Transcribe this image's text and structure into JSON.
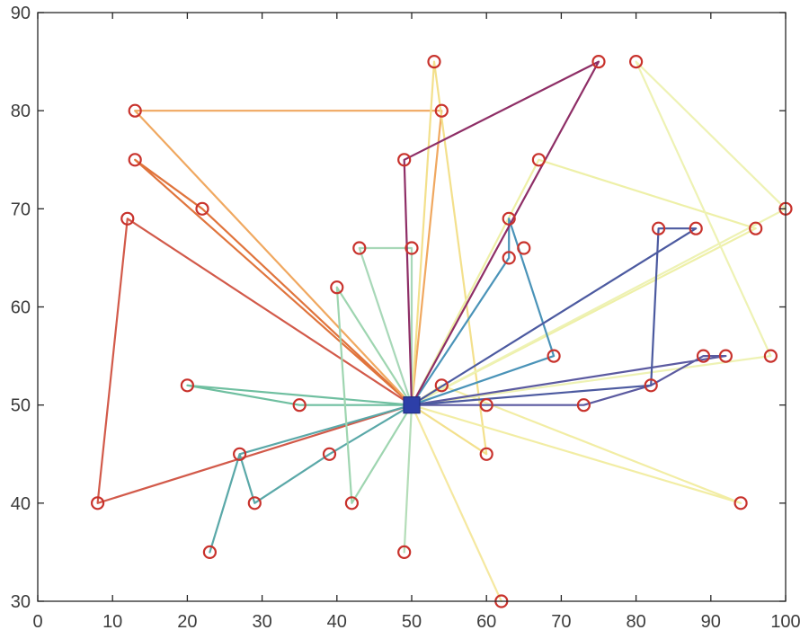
{
  "chart_data": {
    "type": "scatter",
    "xlim": [
      0,
      100
    ],
    "ylim": [
      30,
      90
    ],
    "x_ticks": [
      "0",
      "10",
      "20",
      "30",
      "40",
      "50",
      "60",
      "70",
      "80",
      "90",
      "100"
    ],
    "y_ticks": [
      "30",
      "40",
      "50",
      "60",
      "70",
      "80",
      "90"
    ],
    "grid": false,
    "depot": {
      "x": 50,
      "y": 50,
      "color": "#2d3fa8"
    },
    "customers": [
      [
        8,
        40
      ],
      [
        12,
        69
      ],
      [
        13,
        75
      ],
      [
        13,
        80
      ],
      [
        20,
        52
      ],
      [
        22,
        70
      ],
      [
        23,
        35
      ],
      [
        27,
        45
      ],
      [
        29,
        40
      ],
      [
        35,
        50
      ],
      [
        39,
        45
      ],
      [
        40,
        62
      ],
      [
        42,
        40
      ],
      [
        43,
        66
      ],
      [
        49,
        35
      ],
      [
        49,
        75
      ],
      [
        50,
        66
      ],
      [
        53,
        85
      ],
      [
        54,
        80
      ],
      [
        54,
        52
      ],
      [
        60,
        50
      ],
      [
        60,
        45
      ],
      [
        62,
        30
      ],
      [
        63,
        69
      ],
      [
        63,
        65
      ],
      [
        65,
        66
      ],
      [
        67,
        75
      ],
      [
        69,
        55
      ],
      [
        73,
        50
      ],
      [
        75,
        85
      ],
      [
        80,
        85
      ],
      [
        82,
        52
      ],
      [
        83,
        68
      ],
      [
        88,
        68
      ],
      [
        89,
        55
      ],
      [
        92,
        55
      ],
      [
        94,
        40
      ],
      [
        96,
        68
      ],
      [
        98,
        55
      ],
      [
        100,
        70
      ]
    ],
    "routes": [
      {
        "color": "#d25a4a",
        "points": [
          [
            50,
            50
          ],
          [
            8,
            40
          ],
          [
            12,
            69
          ],
          [
            50,
            50
          ]
        ]
      },
      {
        "color": "#e0743c",
        "points": [
          [
            50,
            50
          ],
          [
            13,
            75
          ],
          [
            22,
            70
          ],
          [
            50,
            50
          ]
        ]
      },
      {
        "color": "#f0a860",
        "points": [
          [
            50,
            50
          ],
          [
            13,
            80
          ],
          [
            54,
            80
          ],
          [
            50,
            50
          ]
        ]
      },
      {
        "color": "#f3e08c",
        "points": [
          [
            50,
            50
          ],
          [
            53,
            85
          ],
          [
            60,
            45
          ],
          [
            50,
            50
          ]
        ]
      },
      {
        "color": "#f5e8a0",
        "points": [
          [
            50,
            50
          ],
          [
            62,
            30
          ],
          [
            50,
            50
          ]
        ]
      },
      {
        "color": "#f2eda4",
        "points": [
          [
            50,
            50
          ],
          [
            94,
            40
          ],
          [
            54,
            52
          ],
          [
            50,
            50
          ]
        ]
      },
      {
        "color": "#eef0a8",
        "points": [
          [
            50,
            50
          ],
          [
            96,
            68
          ],
          [
            67,
            75
          ],
          [
            50,
            50
          ]
        ]
      },
      {
        "color": "#eef2b4",
        "points": [
          [
            50,
            50
          ],
          [
            100,
            70
          ],
          [
            80,
            85
          ],
          [
            98,
            55
          ],
          [
            50,
            50
          ]
        ]
      },
      {
        "color": "#6fbfa0",
        "points": [
          [
            50,
            50
          ],
          [
            20,
            52
          ],
          [
            35,
            50
          ],
          [
            50,
            50
          ]
        ]
      },
      {
        "color": "#5aa8a8",
        "points": [
          [
            50,
            50
          ],
          [
            27,
            45
          ],
          [
            23,
            35
          ],
          [
            27,
            45
          ],
          [
            29,
            40
          ],
          [
            39,
            45
          ],
          [
            50,
            50
          ]
        ]
      },
      {
        "color": "#9ed5b0",
        "points": [
          [
            50,
            50
          ],
          [
            40,
            62
          ],
          [
            42,
            40
          ],
          [
            50,
            50
          ]
        ]
      },
      {
        "color": "#a8d8b8",
        "points": [
          [
            50,
            50
          ],
          [
            43,
            66
          ],
          [
            50,
            66
          ],
          [
            50,
            50
          ]
        ]
      },
      {
        "color": "#b4ddb8",
        "points": [
          [
            50,
            50
          ],
          [
            49,
            35
          ],
          [
            50,
            50
          ]
        ]
      },
      {
        "color": "#4a93b8",
        "points": [
          [
            50,
            50
          ],
          [
            69,
            55
          ],
          [
            63,
            69
          ],
          [
            63,
            65
          ],
          [
            50,
            50
          ]
        ]
      },
      {
        "color": "#8e2e66",
        "points": [
          [
            50,
            50
          ],
          [
            49,
            75
          ],
          [
            75,
            85
          ],
          [
            50,
            50
          ]
        ]
      },
      {
        "color": "#5b5aa0",
        "points": [
          [
            50,
            50
          ],
          [
            73,
            50
          ],
          [
            82,
            52
          ],
          [
            89,
            55
          ],
          [
            92,
            55
          ],
          [
            50,
            50
          ]
        ]
      },
      {
        "color": "#4c5aa0",
        "points": [
          [
            50,
            50
          ],
          [
            88,
            68
          ],
          [
            83,
            68
          ],
          [
            82,
            52
          ],
          [
            50,
            50
          ]
        ]
      }
    ]
  }
}
